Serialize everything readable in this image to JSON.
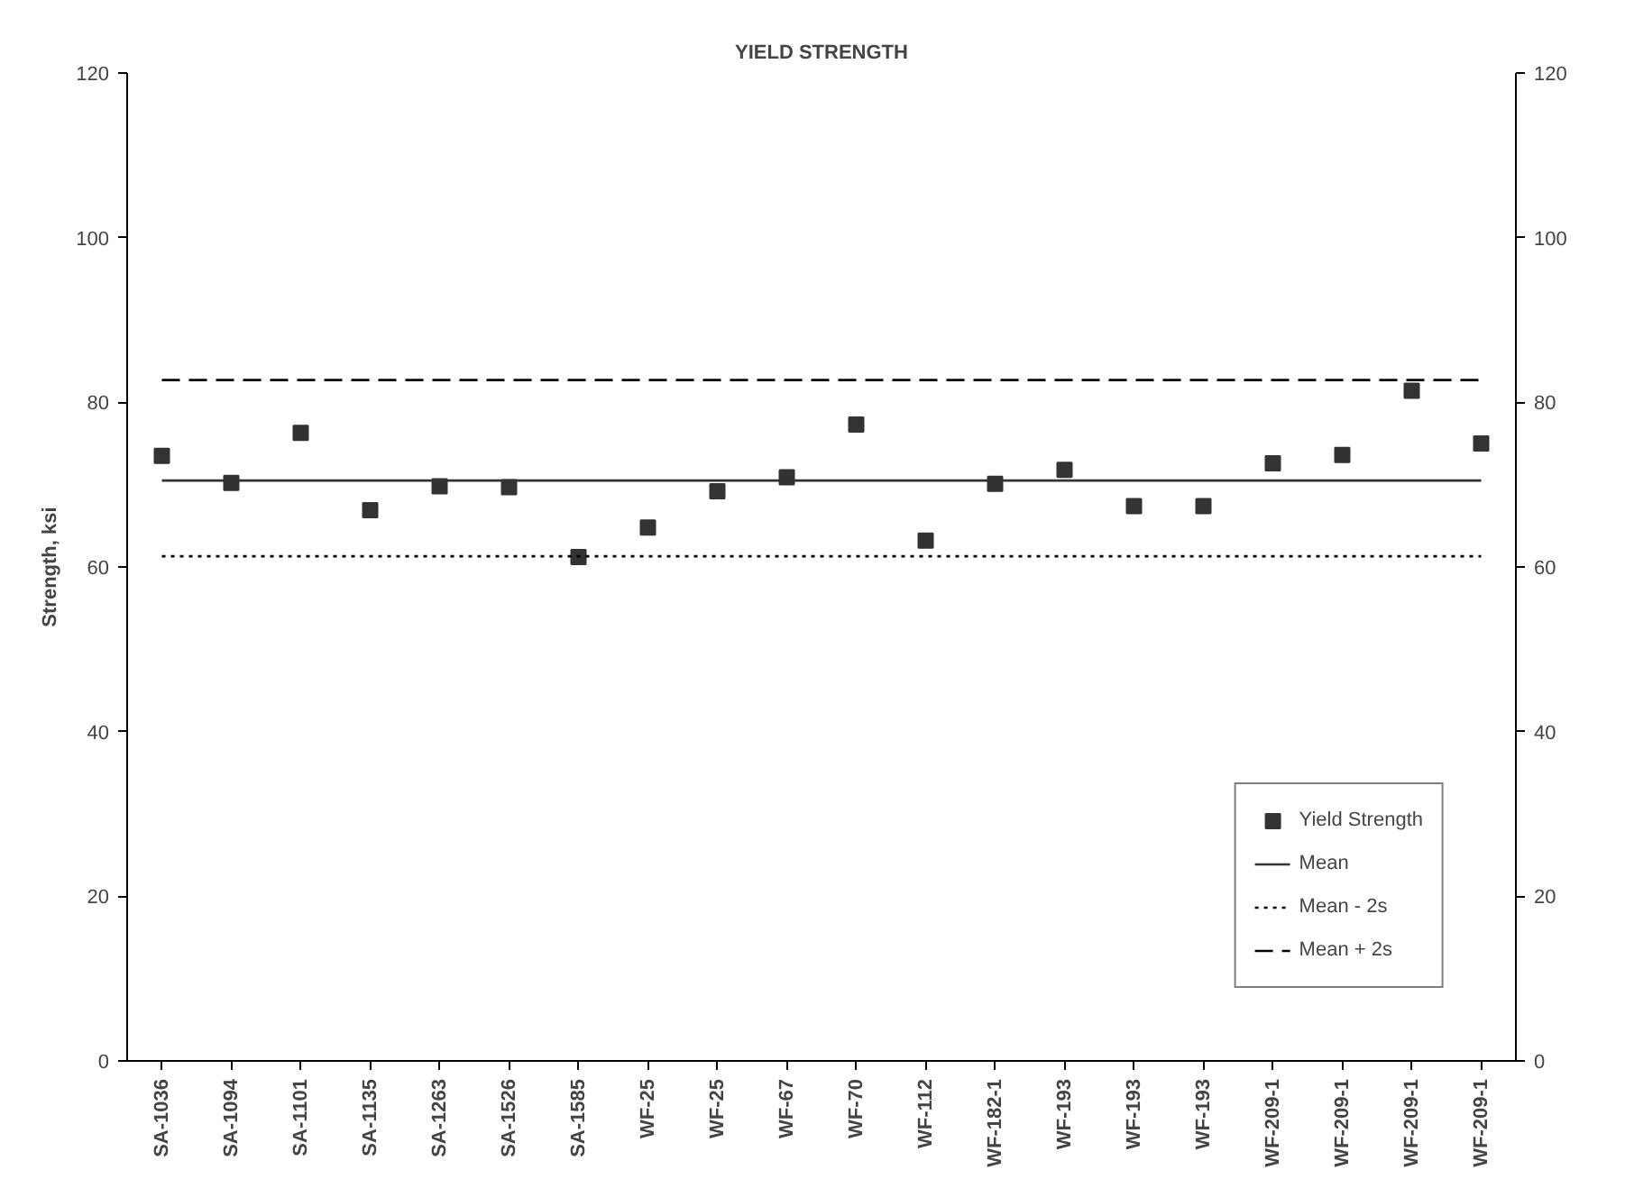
{
  "chart_data": {
    "type": "scatter",
    "title": "YIELD STRENGTH",
    "ylabel": "Strength, ksi",
    "categories": [
      "SA-1036",
      "SA-1094",
      "SA-1101",
      "SA-1135",
      "SA-1263",
      "SA-1526",
      "SA-1585",
      "WF-25",
      "WF-25",
      "WF-67",
      "WF-70",
      "WF-112",
      "WF-182-1",
      "WF-193",
      "WF-193",
      "WF-193",
      "WF-209-1",
      "WF-209-1",
      "WF-209-1",
      "WF-209-1"
    ],
    "series": [
      {
        "name": "Yield Strength",
        "marker": "square",
        "color": "#333333",
        "values": [
          73.5,
          70.2,
          76.3,
          66.9,
          69.8,
          69.7,
          61.2,
          64.8,
          69.2,
          70.9,
          77.3,
          63.2,
          70.1,
          71.8,
          67.4,
          67.4,
          72.6,
          73.6,
          81.4,
          75.0
        ]
      },
      {
        "name": "Mean",
        "type": "line",
        "marker": "none",
        "line_style": "solid",
        "color": "#333333",
        "values": [
          70.5,
          70.5,
          70.5,
          70.5,
          70.5,
          70.5,
          70.5,
          70.5,
          70.5,
          70.5,
          70.5,
          70.5,
          70.5,
          70.5,
          70.5,
          70.5,
          70.5,
          70.5,
          70.5,
          70.5
        ]
      },
      {
        "name": "Mean - 2s",
        "type": "line",
        "marker": "none",
        "line_style": "dotted",
        "color": "#000000",
        "values": [
          61.3,
          61.3,
          61.3,
          61.3,
          61.3,
          61.3,
          61.3,
          61.3,
          61.3,
          61.3,
          61.3,
          61.3,
          61.3,
          61.3,
          61.3,
          61.3,
          61.3,
          61.3,
          61.3,
          61.3
        ]
      },
      {
        "name": "Mean + 2s",
        "type": "line",
        "marker": "none",
        "line_style": "dashed",
        "color": "#000000",
        "values": [
          82.7,
          82.7,
          82.7,
          82.7,
          82.7,
          82.7,
          82.7,
          82.7,
          82.7,
          82.7,
          82.7,
          82.7,
          82.7,
          82.7,
          82.7,
          82.7,
          82.7,
          82.7,
          82.7,
          82.7
        ]
      }
    ],
    "ylim": [
      0,
      120
    ],
    "yticks": [
      0,
      20,
      40,
      60,
      80,
      100,
      120
    ],
    "y2lim": [
      0,
      120
    ],
    "y2ticks": [
      0,
      20,
      40,
      60,
      80,
      100,
      120
    ],
    "grid": false,
    "legend": "bottom right"
  }
}
